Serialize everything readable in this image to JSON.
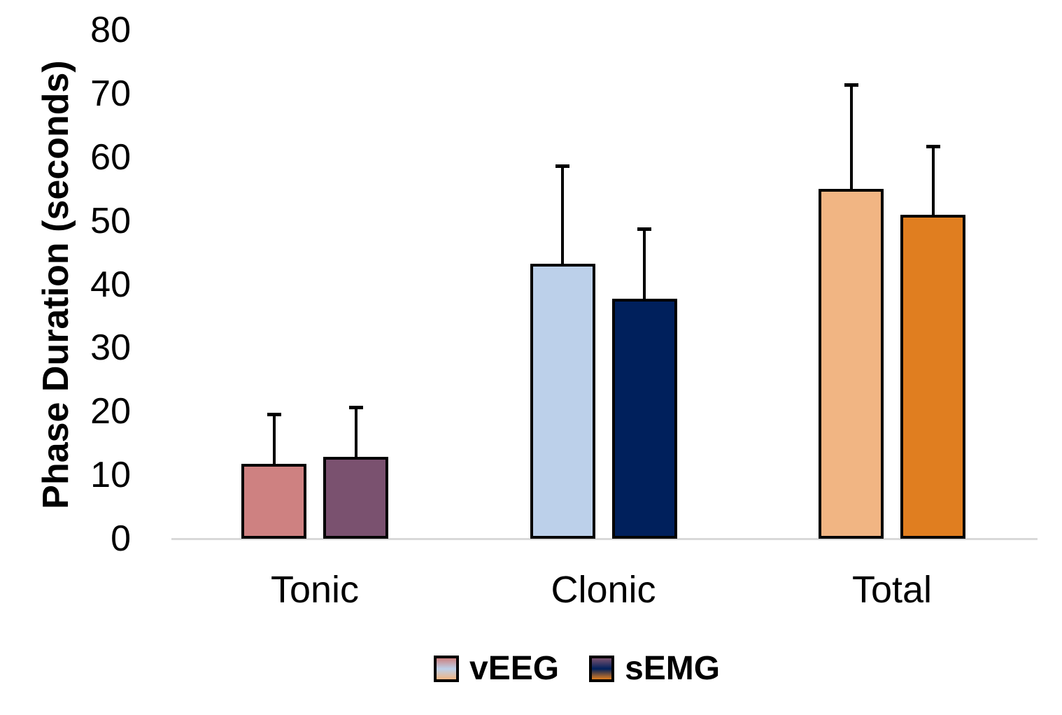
{
  "y_axis": {
    "title": "Phase Duration (seconds)"
  },
  "chart_data": {
    "type": "bar",
    "title": "",
    "xlabel": "",
    "ylabel": "Phase Duration (seconds)",
    "ylim": [
      0,
      80
    ],
    "yticks": [
      0,
      10,
      20,
      30,
      40,
      50,
      60,
      70,
      80
    ],
    "categories": [
      "Tonic",
      "Clonic",
      "Total"
    ],
    "series": [
      {
        "name": "vEEG",
        "values": [
          11.8,
          43.2,
          55.0
        ],
        "error_plus": [
          7.8,
          15.4,
          16.4
        ],
        "fill_colors": [
          "#CE8181",
          "#BCD0EA",
          "#F1B583"
        ]
      },
      {
        "name": "sEMG",
        "values": [
          12.9,
          37.7,
          50.9
        ],
        "error_plus": [
          7.8,
          11.0,
          10.8
        ],
        "fill_colors": [
          "#7A516F",
          "#00205C",
          "#E07E20"
        ]
      }
    ],
    "error_bars": "upper-only black whiskers with caps",
    "bar_border_color": "#000000",
    "baseline_color": "#D9D9D9",
    "text_color": "#000000",
    "grid": false,
    "legend_position": "bottom",
    "legend": [
      "vEEG",
      "sEMG"
    ]
  }
}
